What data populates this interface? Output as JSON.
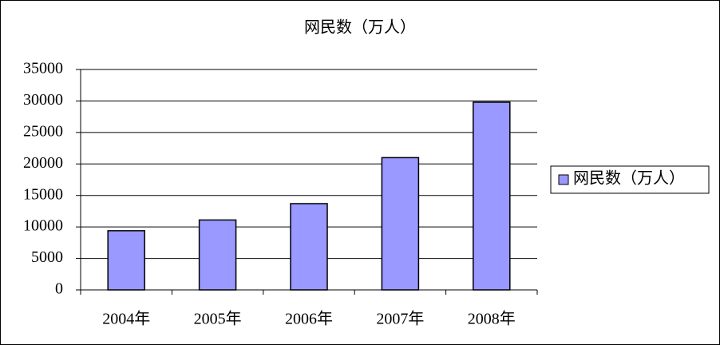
{
  "chart_data": {
    "type": "bar",
    "title": "网民数（万人）",
    "categories": [
      "2004年",
      "2005年",
      "2006年",
      "2007年",
      "2008年"
    ],
    "series": [
      {
        "name": "网民数（万人）",
        "color": "#9999ff",
        "values": [
          9400,
          11100,
          13700,
          21000,
          29800
        ]
      }
    ],
    "ylim": [
      0,
      35000
    ],
    "yticks": [
      0,
      5000,
      10000,
      15000,
      20000,
      25000,
      30000,
      35000
    ],
    "grid": true,
    "legend": "right"
  }
}
